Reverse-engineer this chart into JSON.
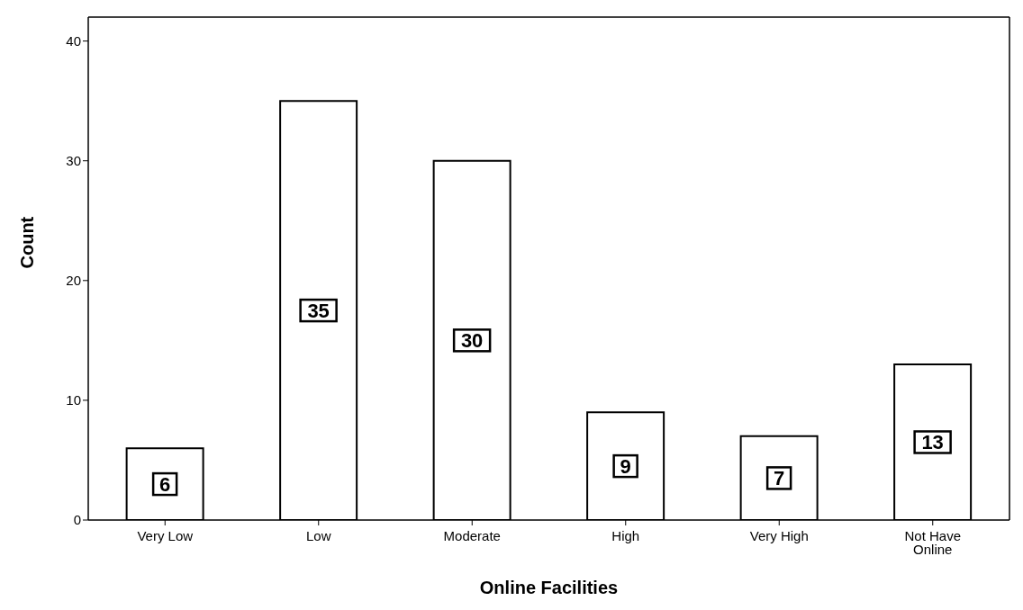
{
  "chart_data": {
    "type": "bar",
    "xlabel": "Online Facilities",
    "ylabel": "Count",
    "categories": [
      "Very Low",
      "Low",
      "Moderate",
      "High",
      "Very High",
      "Not Have Online"
    ],
    "values": [
      6,
      35,
      30,
      9,
      7,
      13
    ],
    "color": "#ffffff",
    "ylim": [
      0,
      42
    ],
    "yticks": [
      0,
      10,
      20,
      30,
      40
    ],
    "grid": false,
    "data_labels": true
  }
}
